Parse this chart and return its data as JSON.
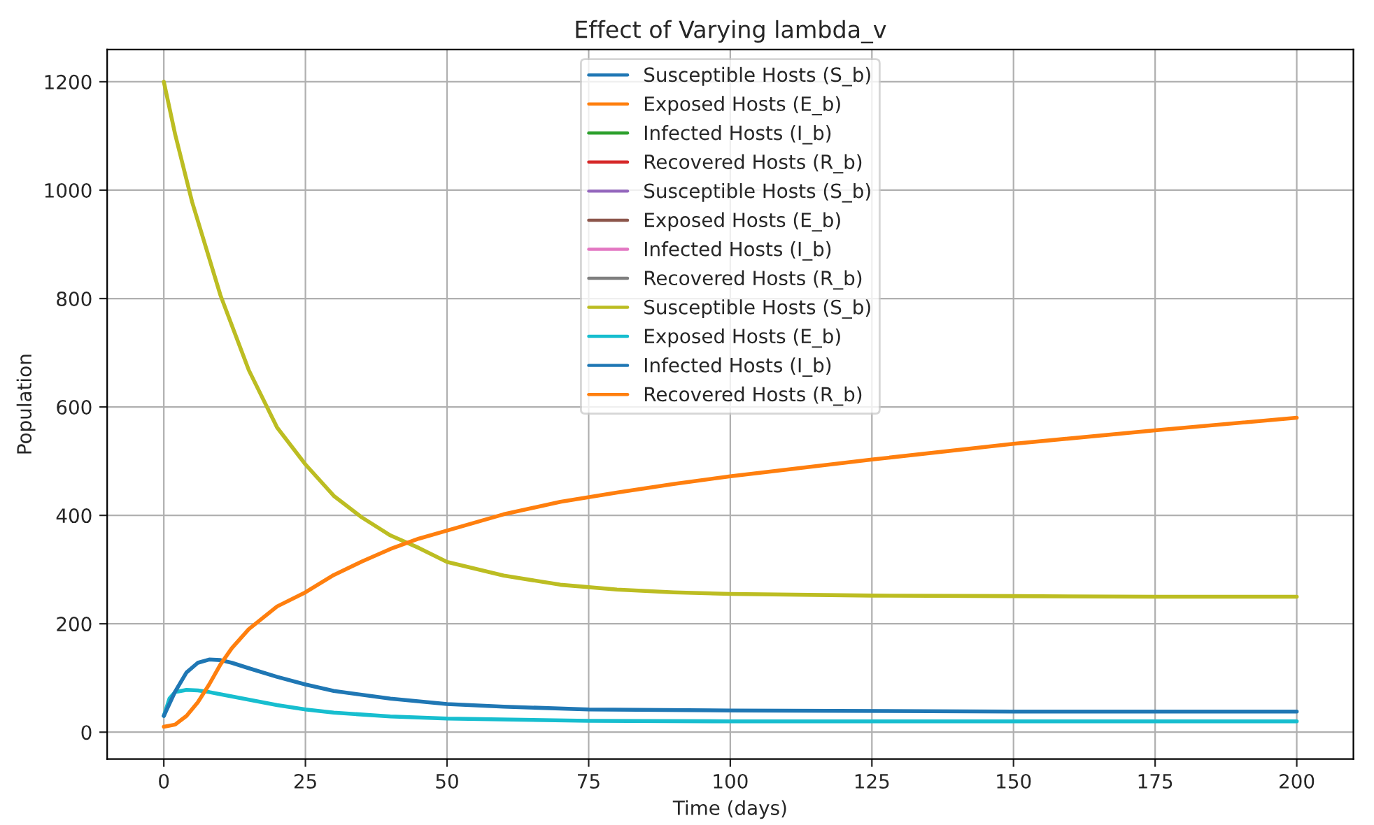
{
  "chart_data": {
    "type": "line",
    "title": "Effect of Varying lambda_v",
    "xlabel": "Time (days)",
    "ylabel": "Population",
    "xlim": [
      -10,
      210
    ],
    "ylim": [
      -49.5,
      1259.5
    ],
    "xticks": [
      0,
      25,
      50,
      75,
      100,
      125,
      150,
      175,
      200
    ],
    "yticks": [
      0,
      200,
      400,
      600,
      800,
      1000,
      1200
    ],
    "grid": true,
    "legend": "top",
    "series": [
      {
        "name": "Susceptible Hosts (S_b)",
        "color": "#1f77b4"
      },
      {
        "name": "Exposed Hosts (E_b)",
        "color": "#ff7f0e"
      },
      {
        "name": "Infected Hosts (I_b)",
        "color": "#2ca02c"
      },
      {
        "name": "Recovered Hosts (R_b)",
        "color": "#d62728"
      },
      {
        "name": "Susceptible Hosts (S_b)",
        "color": "#9467bd"
      },
      {
        "name": "Exposed Hosts (E_b)",
        "color": "#8c564b"
      },
      {
        "name": "Infected Hosts (I_b)",
        "color": "#e377c2"
      },
      {
        "name": "Recovered Hosts (R_b)",
        "color": "#7f7f7f"
      },
      {
        "name": "Susceptible Hosts (S_b)",
        "color": "#bcbd22",
        "x": [
          0,
          2,
          5,
          10,
          15,
          20,
          25,
          30,
          35,
          40,
          45,
          50,
          60,
          70,
          80,
          90,
          100,
          125,
          150,
          175,
          200
        ],
        "values": [
          1200,
          1103,
          978,
          806,
          668,
          562,
          494,
          436,
          396,
          363,
          340,
          314,
          289,
          272,
          263,
          258,
          255,
          252,
          251,
          250,
          250
        ]
      },
      {
        "name": "Exposed Hosts (E_b)",
        "color": "#17becf",
        "x": [
          0,
          1,
          2,
          4,
          6,
          8,
          10,
          15,
          20,
          25,
          30,
          40,
          50,
          75,
          100,
          150,
          200
        ],
        "values": [
          30,
          62,
          74,
          78,
          77,
          74,
          70,
          60,
          50,
          42,
          36,
          29,
          25,
          21,
          20,
          20,
          20
        ]
      },
      {
        "name": "Infected Hosts (I_b)",
        "color": "#1f77b4",
        "x": [
          0,
          2,
          4,
          6,
          8,
          10,
          12,
          15,
          20,
          25,
          30,
          40,
          50,
          60,
          75,
          100,
          150,
          200
        ],
        "values": [
          30,
          75,
          110,
          128,
          134,
          133,
          128,
          118,
          102,
          88,
          76,
          62,
          52,
          47,
          42,
          40,
          38,
          38
        ]
      },
      {
        "name": "Recovered Hosts (R_b)",
        "color": "#ff7f0e",
        "x": [
          0,
          2,
          4,
          6,
          8,
          10,
          12,
          15,
          20,
          25,
          30,
          35,
          40,
          45,
          50,
          60,
          70,
          80,
          90,
          100,
          125,
          150,
          175,
          200
        ],
        "values": [
          10,
          14,
          30,
          55,
          88,
          125,
          155,
          190,
          232,
          258,
          290,
          315,
          338,
          357,
          372,
          402,
          425,
          442,
          458,
          472,
          503,
          532,
          557,
          580
        ]
      }
    ]
  }
}
